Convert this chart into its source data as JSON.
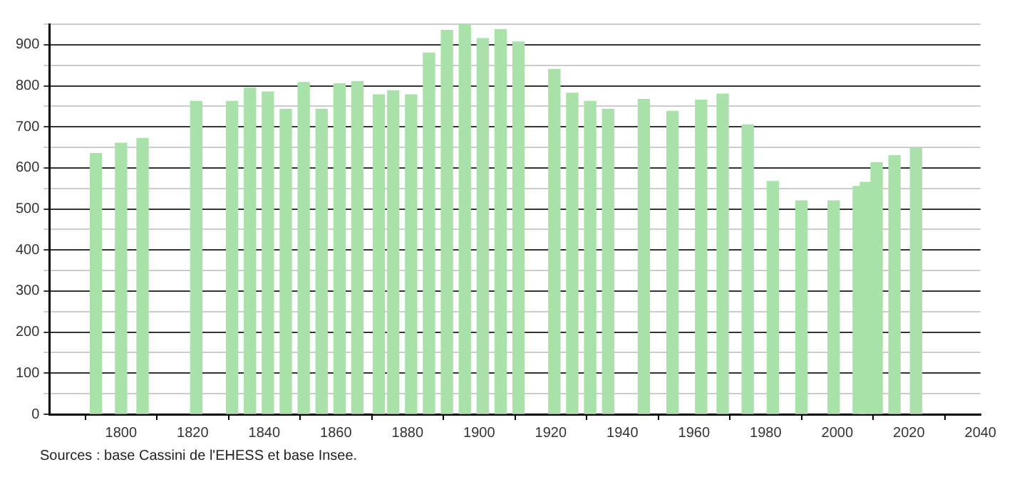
{
  "chart_data": {
    "type": "bar",
    "x": [
      1793,
      1800,
      1806,
      1821,
      1831,
      1836,
      1841,
      1846,
      1851,
      1856,
      1861,
      1866,
      1872,
      1876,
      1881,
      1886,
      1891,
      1896,
      1901,
      1906,
      1911,
      1921,
      1926,
      1931,
      1936,
      1946,
      1954,
      1962,
      1968,
      1975,
      1982,
      1990,
      1999,
      2006,
      2008,
      2011,
      2016,
      2022
    ],
    "values": [
      635,
      660,
      672,
      762,
      762,
      795,
      785,
      743,
      808,
      743,
      805,
      810,
      778,
      788,
      778,
      880,
      935,
      950,
      915,
      937,
      907,
      840,
      782,
      762,
      743,
      767,
      738,
      765,
      780,
      705,
      567,
      520,
      520,
      555,
      565,
      613,
      630,
      648
    ],
    "color": "#a8e2a8",
    "xlim": [
      1780,
      2040
    ],
    "xticks": [
      1800,
      1820,
      1840,
      1860,
      1880,
      1900,
      1920,
      1940,
      1960,
      1980,
      2000,
      2020,
      2040
    ],
    "ylim": [
      0,
      950
    ],
    "yticks": [
      0,
      {
        "value": 50,
        "label": null
      },
      100,
      {
        "value": 150,
        "label": null
      },
      200,
      {
        "value": 250,
        "label": null
      },
      300,
      {
        "value": 350,
        "label": null
      },
      400,
      {
        "value": 450,
        "label": null
      },
      500,
      {
        "value": 550,
        "label": null
      },
      600,
      {
        "value": 650,
        "label": null
      },
      700,
      {
        "value": 750,
        "label": null
      },
      800,
      {
        "value": 850,
        "label": null
      },
      900,
      {
        "value": 950,
        "label": null
      }
    ],
    "grid": "y",
    "annotations": [
      "Sources : base Cassini de l'EHESS et base Insee."
    ]
  }
}
